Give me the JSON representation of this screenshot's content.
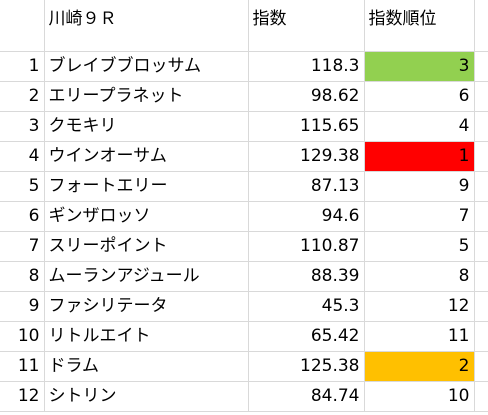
{
  "header": {
    "race": "川崎９Ｒ",
    "index": "指数",
    "rank": "指数順位"
  },
  "colors": {
    "rank1": "#ff0000",
    "rank2": "#ffc000",
    "rank3": "#92d050",
    "gridline": "#d9d9d9"
  },
  "rows": [
    {
      "no": "1",
      "name": "ブレイブブロッサム",
      "index": "118.3",
      "rank": "3",
      "highlight": "rank3"
    },
    {
      "no": "2",
      "name": "エリープラネット",
      "index": "98.62",
      "rank": "6",
      "highlight": ""
    },
    {
      "no": "3",
      "name": "クモキリ",
      "index": "115.65",
      "rank": "4",
      "highlight": ""
    },
    {
      "no": "4",
      "name": "ウインオーサム",
      "index": "129.38",
      "rank": "1",
      "highlight": "rank1"
    },
    {
      "no": "5",
      "name": "フォートエリー",
      "index": "87.13",
      "rank": "9",
      "highlight": ""
    },
    {
      "no": "6",
      "name": "ギンザロッソ",
      "index": "94.6",
      "rank": "7",
      "highlight": ""
    },
    {
      "no": "7",
      "name": "スリーポイント",
      "index": "110.87",
      "rank": "5",
      "highlight": ""
    },
    {
      "no": "8",
      "name": "ムーランアジュール",
      "index": "88.39",
      "rank": "8",
      "highlight": ""
    },
    {
      "no": "9",
      "name": "ファシリテータ",
      "index": "45.3",
      "rank": "12",
      "highlight": ""
    },
    {
      "no": "10",
      "name": "リトルエイト",
      "index": "65.42",
      "rank": "11",
      "highlight": ""
    },
    {
      "no": "11",
      "name": "ドラム",
      "index": "125.38",
      "rank": "2",
      "highlight": "rank2"
    },
    {
      "no": "12",
      "name": "シトリン",
      "index": "84.74",
      "rank": "10",
      "highlight": ""
    }
  ]
}
